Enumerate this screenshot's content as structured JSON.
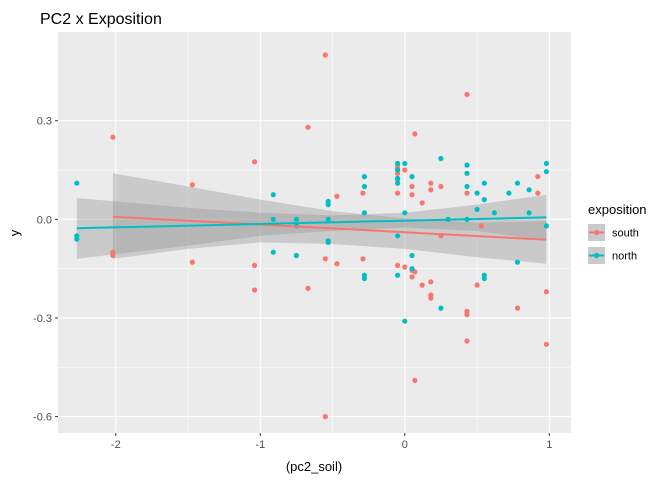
{
  "chart_data": {
    "type": "scatter",
    "title": "PC2 x Exposition",
    "xlabel": "(pc2_soil)",
    "ylabel": "y",
    "xlim": [
      -2.4,
      1.15
    ],
    "ylim": [
      -0.65,
      0.57
    ],
    "x_ticks": [
      -2,
      -1,
      0,
      1
    ],
    "x_tick_labels": [
      "-2",
      "-1",
      "0",
      "1"
    ],
    "y_ticks": [
      0.3,
      0.0,
      -0.3,
      -0.6
    ],
    "y_tick_labels": [
      "0.3",
      "0.0",
      "-0.3",
      "-0.6"
    ],
    "grid": true,
    "background": "#ebebeb",
    "legend": {
      "title": "exposition",
      "position": "right"
    },
    "series": [
      {
        "name": "south",
        "color": "#F8766D",
        "points": [
          [
            -2.02,
            0.25
          ],
          [
            -2.02,
            -0.1
          ],
          [
            -2.02,
            -0.11
          ],
          [
            -1.47,
            0.105
          ],
          [
            -1.47,
            -0.13
          ],
          [
            -1.04,
            0.175
          ],
          [
            -1.04,
            -0.14
          ],
          [
            -1.04,
            -0.215
          ],
          [
            -0.67,
            0.28
          ],
          [
            -0.67,
            -0.21
          ],
          [
            -0.55,
            0.5
          ],
          [
            -0.55,
            -0.12
          ],
          [
            -0.55,
            -0.6
          ],
          [
            -0.47,
            0.07
          ],
          [
            -0.47,
            -0.135
          ],
          [
            -0.29,
            0.08
          ],
          [
            -0.29,
            -0.12
          ],
          [
            -0.05,
            0.165
          ],
          [
            -0.05,
            0.155
          ],
          [
            -0.05,
            0.14
          ],
          [
            -0.05,
            0.12
          ],
          [
            -0.05,
            0.08
          ],
          [
            -0.05,
            -0.14
          ],
          [
            0.0,
            0.15
          ],
          [
            0.0,
            -0.145
          ],
          [
            0.05,
            0.1
          ],
          [
            0.05,
            0.075
          ],
          [
            0.05,
            -0.155
          ],
          [
            0.05,
            -0.175
          ],
          [
            0.07,
            0.26
          ],
          [
            0.07,
            -0.16
          ],
          [
            0.07,
            -0.49
          ],
          [
            0.12,
            0.05
          ],
          [
            0.12,
            -0.2
          ],
          [
            0.18,
            0.11
          ],
          [
            0.18,
            0.09
          ],
          [
            0.18,
            -0.19
          ],
          [
            0.18,
            -0.23
          ],
          [
            0.18,
            -0.24
          ],
          [
            0.25,
            0.1
          ],
          [
            0.25,
            -0.05
          ],
          [
            0.43,
            0.38
          ],
          [
            0.43,
            0.08
          ],
          [
            0.43,
            -0.28
          ],
          [
            0.43,
            -0.29
          ],
          [
            0.43,
            -0.37
          ],
          [
            0.5,
            -0.2
          ],
          [
            0.78,
            -0.27
          ],
          [
            0.92,
            0.13
          ],
          [
            0.92,
            0.08
          ],
          [
            0.98,
            -0.22
          ],
          [
            0.98,
            -0.38
          ],
          [
            0.53,
            -0.02
          ]
        ],
        "trend": {
          "x": [
            -2.02,
            0.98
          ],
          "y": [
            0.008,
            -0.062
          ]
        },
        "ci_x": [
          -2.02,
          -1.5,
          -1.0,
          -0.5,
          0.0,
          0.5,
          0.98
        ],
        "ci_upper": [
          0.14,
          0.1,
          0.06,
          0.025,
          0.003,
          -0.01,
          -0.005
        ],
        "ci_lower": [
          -0.12,
          -0.09,
          -0.07,
          -0.075,
          -0.09,
          -0.115,
          -0.135
        ]
      },
      {
        "name": "north",
        "color": "#00BFC4",
        "points": [
          [
            -2.27,
            0.11
          ],
          [
            -2.27,
            -0.05
          ],
          [
            -2.27,
            -0.06
          ],
          [
            -0.91,
            0.075
          ],
          [
            -0.91,
            0.0
          ],
          [
            -0.91,
            -0.1
          ],
          [
            -0.75,
            0.0
          ],
          [
            -0.75,
            -0.02
          ],
          [
            -0.75,
            -0.11
          ],
          [
            -0.53,
            0.055
          ],
          [
            -0.53,
            0.045
          ],
          [
            -0.53,
            0.0
          ],
          [
            -0.53,
            -0.065
          ],
          [
            -0.53,
            -0.07
          ],
          [
            -0.28,
            0.13
          ],
          [
            -0.28,
            0.1
          ],
          [
            -0.28,
            0.02
          ],
          [
            -0.28,
            -0.17
          ],
          [
            -0.28,
            -0.18
          ],
          [
            -0.05,
            0.17
          ],
          [
            -0.05,
            0.15
          ],
          [
            -0.05,
            0.125
          ],
          [
            -0.05,
            0.11
          ],
          [
            -0.05,
            -0.05
          ],
          [
            -0.05,
            -0.17
          ],
          [
            0.0,
            0.17
          ],
          [
            0.0,
            0.02
          ],
          [
            0.0,
            -0.31
          ],
          [
            0.05,
            0.13
          ],
          [
            0.05,
            -0.11
          ],
          [
            0.05,
            -0.15
          ],
          [
            0.25,
            0.185
          ],
          [
            0.25,
            -0.27
          ],
          [
            0.3,
            0.0
          ],
          [
            0.43,
            0.165
          ],
          [
            0.43,
            0.14
          ],
          [
            0.43,
            0.1
          ],
          [
            0.43,
            0.0
          ],
          [
            0.5,
            0.08
          ],
          [
            0.5,
            0.03
          ],
          [
            0.55,
            0.11
          ],
          [
            0.55,
            0.06
          ],
          [
            0.55,
            -0.17
          ],
          [
            0.55,
            -0.18
          ],
          [
            0.62,
            0.02
          ],
          [
            0.72,
            0.08
          ],
          [
            0.78,
            0.11
          ],
          [
            0.78,
            -0.13
          ],
          [
            0.86,
            0.09
          ],
          [
            0.86,
            0.02
          ],
          [
            0.98,
            0.17
          ],
          [
            0.98,
            0.145
          ],
          [
            0.98,
            -0.02
          ]
        ],
        "trend": {
          "x": [
            -2.27,
            0.98
          ],
          "y": [
            -0.027,
            0.006
          ]
        },
        "ci_x": [
          -2.27,
          -1.5,
          -1.0,
          -0.5,
          0.0,
          0.5,
          0.98
        ],
        "ci_upper": [
          0.065,
          0.035,
          0.02,
          0.012,
          0.02,
          0.045,
          0.075
        ],
        "ci_lower": [
          -0.12,
          -0.08,
          -0.05,
          -0.035,
          -0.025,
          -0.035,
          -0.065
        ]
      }
    ]
  }
}
